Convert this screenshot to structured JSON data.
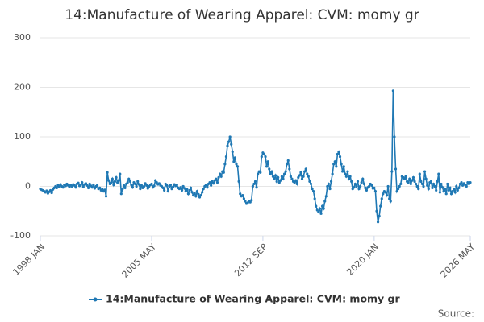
{
  "chart_data": {
    "type": "line",
    "title": "14:Manufacture of Wearing Apparel: CVM: momy gr",
    "source": "Source:",
    "categories": [
      "1998 JAN",
      null,
      null,
      null,
      null,
      null,
      null,
      null,
      null,
      null,
      null,
      null,
      null,
      null,
      null,
      null,
      null,
      null,
      null,
      null,
      null,
      null,
      null,
      null,
      null,
      null,
      null,
      null,
      null,
      null,
      null,
      null,
      null,
      null,
      null,
      null,
      null,
      null,
      null,
      null,
      null,
      null,
      null,
      null,
      null,
      null,
      null,
      null,
      null,
      null,
      null,
      null,
      null,
      null,
      null,
      null,
      null,
      null,
      null,
      null,
      null,
      null,
      null,
      null,
      null,
      null,
      null,
      null,
      null,
      null,
      null,
      null,
      null,
      null,
      null,
      null,
      null,
      null,
      null,
      null,
      null,
      null,
      null,
      null,
      null,
      null,
      null,
      null,
      "2005 MAY",
      null,
      null,
      null,
      null,
      null,
      null,
      null,
      null,
      null,
      null,
      null,
      null,
      null,
      null,
      null,
      null,
      null,
      null,
      null,
      null,
      null,
      null,
      null,
      null,
      null,
      null,
      null,
      null,
      null,
      null,
      null,
      null,
      null,
      null,
      null,
      null,
      null,
      null,
      null,
      null,
      null,
      null,
      null,
      null,
      null,
      null,
      null,
      null,
      null,
      null,
      null,
      null,
      null,
      null,
      null,
      null,
      null,
      null,
      null,
      null,
      null,
      null,
      null,
      null,
      null,
      null,
      null,
      null,
      null,
      null,
      null,
      null,
      null,
      null,
      null,
      null,
      null,
      null,
      null,
      null,
      null,
      null,
      null,
      null,
      null,
      null,
      null,
      "2012 SEP",
      null,
      null,
      null,
      null,
      null,
      null,
      null,
      null,
      null,
      null,
      null,
      null,
      null,
      null,
      null,
      null,
      null,
      null,
      null,
      null,
      null,
      null,
      null,
      null,
      null,
      null,
      null,
      null,
      null,
      null,
      null,
      null,
      null,
      null,
      null,
      null,
      null,
      null,
      null,
      null,
      null,
      null,
      null,
      null,
      null,
      null,
      null,
      null,
      null,
      null,
      null,
      null,
      null,
      null,
      null,
      null,
      null,
      null,
      null,
      null,
      null,
      null,
      null,
      null,
      null,
      null,
      null,
      null,
      null,
      null,
      null,
      null,
      null,
      null,
      null,
      null,
      null,
      null,
      null,
      null,
      null,
      null,
      null,
      null,
      null,
      null,
      null,
      "2020 JAN",
      null,
      null,
      null,
      null,
      null,
      null,
      null,
      null,
      null,
      null,
      null,
      null,
      null,
      null,
      null,
      null,
      null,
      null,
      null,
      null,
      null,
      null,
      null,
      null,
      null,
      null,
      null,
      null,
      null,
      null,
      null,
      null,
      null,
      null,
      null,
      null,
      null,
      null,
      null,
      null,
      null,
      null,
      null,
      null,
      null,
      null,
      null,
      null,
      null,
      null,
      null,
      null,
      null,
      null,
      null,
      null,
      null,
      null,
      null,
      null,
      null,
      null,
      null,
      null,
      null,
      null,
      null,
      null,
      null,
      null,
      null,
      null,
      null,
      null,
      null,
      "2026 MAY"
    ],
    "series": [
      {
        "name": "14:Manufacture of Wearing Apparel: CVM: momy gr",
        "color": "#1f78b4",
        "values": [
          -5,
          -7,
          -8,
          -10,
          -12,
          -9,
          -14,
          -11,
          -8,
          -13,
          -6,
          -3,
          0,
          -3,
          2,
          -1,
          4,
          0,
          -2,
          3,
          1,
          5,
          2,
          -1,
          3,
          0,
          4,
          2,
          -2,
          5,
          7,
          1,
          3,
          8,
          -1,
          4,
          6,
          2,
          -3,
          5,
          1,
          -2,
          3,
          -4,
          0,
          2,
          -5,
          -3,
          -8,
          -6,
          -10,
          -7,
          -20,
          28,
          12,
          5,
          8,
          15,
          3,
          10,
          18,
          8,
          12,
          25,
          -15,
          -5,
          2,
          -3,
          5,
          8,
          15,
          10,
          3,
          -2,
          8,
          5,
          0,
          10,
          4,
          -5,
          2,
          -3,
          0,
          6,
          2,
          -4,
          0,
          3,
          5,
          -2,
          1,
          12,
          8,
          4,
          6,
          2,
          0,
          -3,
          -8,
          5,
          2,
          -10,
          0,
          3,
          -5,
          -1,
          4,
          1,
          3,
          -3,
          -5,
          -2,
          -8,
          0,
          -4,
          -10,
          -6,
          -15,
          -8,
          -3,
          -12,
          -18,
          -14,
          -20,
          -10,
          -16,
          -22,
          -18,
          -12,
          -5,
          0,
          3,
          -2,
          5,
          8,
          2,
          10,
          6,
          12,
          15,
          8,
          18,
          25,
          20,
          30,
          28,
          45,
          60,
          82,
          90,
          100,
          85,
          70,
          50,
          58,
          45,
          40,
          10,
          -15,
          -20,
          -18,
          -25,
          -30,
          -35,
          -33,
          -30,
          -32,
          -28,
          0,
          5,
          10,
          -2,
          25,
          30,
          28,
          60,
          68,
          65,
          60,
          40,
          50,
          35,
          25,
          30,
          20,
          15,
          22,
          10,
          18,
          8,
          12,
          20,
          15,
          25,
          30,
          45,
          52,
          35,
          20,
          15,
          10,
          8,
          12,
          5,
          18,
          22,
          28,
          15,
          20,
          30,
          35,
          25,
          20,
          10,
          5,
          -5,
          -10,
          -25,
          -40,
          -48,
          -52,
          -45,
          -55,
          -40,
          -45,
          -30,
          -20,
          0,
          5,
          -5,
          10,
          25,
          45,
          50,
          40,
          65,
          70,
          60,
          45,
          30,
          40,
          25,
          20,
          30,
          15,
          20,
          10,
          -5,
          -2,
          5,
          0,
          10,
          -5,
          0,
          8,
          15,
          5,
          -3,
          -8,
          -2,
          0,
          5,
          2,
          -4,
          -3,
          -10,
          -50,
          -72,
          -60,
          -40,
          -25,
          -15,
          -10,
          -12,
          -18,
          0,
          -25,
          -30,
          30,
          193,
          100,
          35,
          -10,
          -5,
          0,
          5,
          20,
          18,
          15,
          20,
          10,
          8,
          15,
          5,
          12,
          18,
          10,
          5,
          0,
          -5,
          25,
          10,
          5,
          0,
          30,
          15,
          2,
          -5,
          8,
          10,
          -3,
          5,
          0,
          -8,
          10,
          25,
          -12,
          5,
          -2,
          -10,
          -5,
          -15,
          5,
          -8,
          -3,
          -15,
          -10,
          -5,
          -12,
          0,
          -8,
          -3,
          5,
          8,
          2,
          6,
          3,
          0,
          8,
          5,
          8
        ]
      }
    ],
    "ylim": [
      -100,
      300
    ],
    "yticks": [
      -100,
      0,
      100,
      200,
      300
    ],
    "grid": true
  }
}
